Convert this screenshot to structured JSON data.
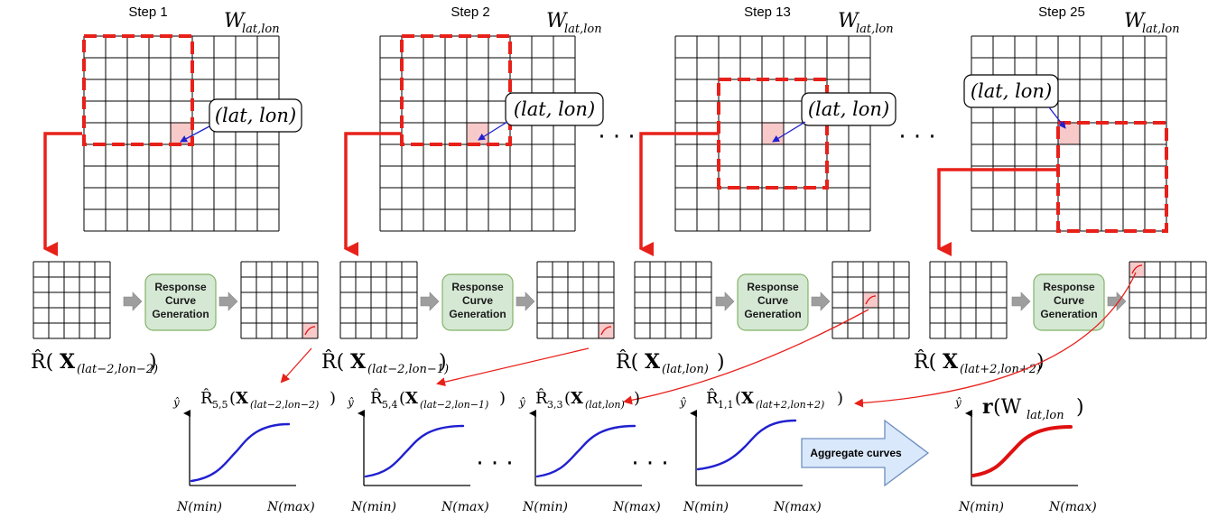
{
  "steps": [
    {
      "label": "Step 1",
      "grid_label": "W",
      "grid_sub": "lat,lon",
      "cell_label": "(lat, lon)"
    },
    {
      "label": "Step 2",
      "grid_label": "W",
      "grid_sub": "lat,lon",
      "cell_label": "(lat, lon)"
    },
    {
      "label": "Step 13",
      "grid_label": "W",
      "grid_sub": "lat,lon",
      "cell_label": "(lat, lon)"
    },
    {
      "label": "Step 25",
      "grid_label": "W",
      "grid_sub": "lat,lon",
      "cell_label": "(lat, lon)"
    }
  ],
  "ellipsis": "· · ·",
  "generator_label_lines": [
    "Response",
    "Curve",
    "Generation"
  ],
  "r_hat_labels": [
    {
      "base": "R̂(",
      "bold": "X",
      "sub": "(lat−2,lon−2)",
      "close": ")"
    },
    {
      "base": "R̂(",
      "bold": "X",
      "sub": "(lat−2,lon−1)",
      "close": ")"
    },
    {
      "base": "R̂(",
      "bold": "X",
      "sub": "(lat,lon)",
      "close": ")"
    },
    {
      "base": "R̂(",
      "bold": "X",
      "sub": "(lat+2,lon+2)",
      "close": ")"
    }
  ],
  "curve_plots": [
    {
      "title_base": "R̂",
      "title_idx": "5,5",
      "bold": "X",
      "sub": "(lat−2,lon−2)",
      "y_label": "ŷ",
      "x_min": "N(min)",
      "x_max": "N(max)"
    },
    {
      "title_base": "R̂",
      "title_idx": "5,4",
      "bold": "X",
      "sub": "(lat−2,lon−1)",
      "y_label": "ŷ",
      "x_min": "N(min)",
      "x_max": "N(max)"
    },
    {
      "title_base": "R̂",
      "title_idx": "3,3",
      "bold": "X",
      "sub": "(lat,lon)",
      "y_label": "ŷ",
      "x_min": "N(min)",
      "x_max": "N(max)"
    },
    {
      "title_base": "R̂",
      "title_idx": "1,1",
      "bold": "X",
      "sub": "(lat+2,lon+2)",
      "y_label": "ŷ",
      "x_min": "N(min)",
      "x_max": "N(max)"
    }
  ],
  "aggregate_label": "Aggregate curves",
  "result_plot": {
    "title_bold": "r",
    "title_rest": "(W",
    "title_sub": "lat,lon",
    "title_close": ")",
    "y_label": "ŷ",
    "x_min": "N(min)",
    "x_max": "N(max)"
  },
  "colors": {
    "window": "#e8201a",
    "highlight_cell": "#f7c9c9",
    "generator_fill": "#d5e8d4",
    "generator_border": "#82b366",
    "curve_blue": "#2020d0",
    "curve_red": "#e01010",
    "aggregate_fill": "#dae8fc",
    "aggregate_border": "#6c8ebf",
    "gray_arrow": "#9e9e9e"
  }
}
